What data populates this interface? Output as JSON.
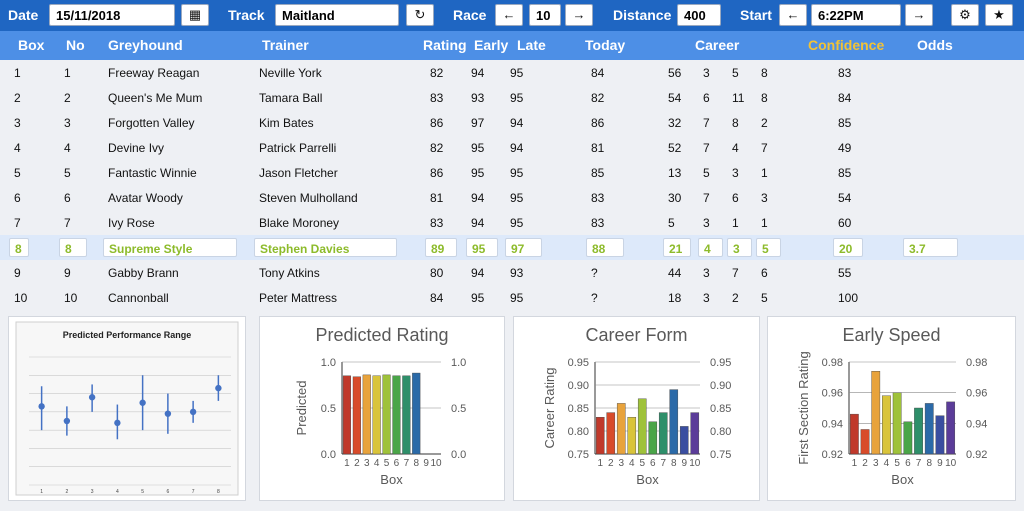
{
  "toolbar": {
    "date_label": "Date",
    "date_value": "15/11/2018",
    "calendar_icon": "calendar-icon",
    "track_label": "Track",
    "track_value": "Maitland",
    "refresh_icon": "refresh-icon",
    "race_label": "Race",
    "race_value": "10",
    "distance_label": "Distance",
    "distance_value": "400",
    "start_label": "Start",
    "start_value": "6:22PM",
    "prev_icon": "arrow-left-icon",
    "next_icon": "arrow-right-icon",
    "settings_icon": "gear-icon",
    "favorite_icon": "star-icon",
    "arrow_left_glyph": "←",
    "arrow_right_glyph": "→",
    "refresh_glyph": "↻",
    "gear_glyph": "⚙",
    "star_glyph": "★",
    "calendar_glyph": "▦"
  },
  "table": {
    "headers": {
      "box": "Box",
      "no": "No",
      "greyhound": "Greyhound",
      "trainer": "Trainer",
      "rating": "Rating",
      "early": "Early",
      "late": "Late",
      "today": "Today",
      "career": "Career",
      "confidence": "Confidence",
      "odds": "Odds"
    },
    "rows": [
      {
        "box": "1",
        "no": "1",
        "name": "Freeway Reagan",
        "trainer": "Neville York",
        "rating": "82",
        "early": "94",
        "late": "95",
        "today": "84",
        "c1": "56",
        "c2": "3",
        "c3": "5",
        "c4": "8",
        "confidence": "83",
        "odds": ""
      },
      {
        "box": "2",
        "no": "2",
        "name": "Queen's Me Mum",
        "trainer": "Tamara Ball",
        "rating": "83",
        "early": "93",
        "late": "95",
        "today": "82",
        "c1": "54",
        "c2": "6",
        "c3": "11",
        "c4": "8",
        "confidence": "84",
        "odds": ""
      },
      {
        "box": "3",
        "no": "3",
        "name": "Forgotten Valley",
        "trainer": "Kim Bates",
        "rating": "86",
        "early": "97",
        "late": "94",
        "today": "86",
        "c1": "32",
        "c2": "7",
        "c3": "8",
        "c4": "2",
        "confidence": "85",
        "odds": ""
      },
      {
        "box": "4",
        "no": "4",
        "name": "Devine Ivy",
        "trainer": "Patrick Parrelli",
        "rating": "82",
        "early": "95",
        "late": "94",
        "today": "81",
        "c1": "52",
        "c2": "7",
        "c3": "4",
        "c4": "7",
        "confidence": "49",
        "odds": ""
      },
      {
        "box": "5",
        "no": "5",
        "name": "Fantastic Winnie",
        "trainer": "Jason Fletcher",
        "rating": "86",
        "early": "95",
        "late": "95",
        "today": "85",
        "c1": "13",
        "c2": "5",
        "c3": "3",
        "c4": "1",
        "confidence": "85",
        "odds": ""
      },
      {
        "box": "6",
        "no": "6",
        "name": "Avatar Woody",
        "trainer": "Steven Mulholland",
        "rating": "81",
        "early": "94",
        "late": "95",
        "today": "83",
        "c1": "30",
        "c2": "7",
        "c3": "6",
        "c4": "3",
        "confidence": "54",
        "odds": ""
      },
      {
        "box": "7",
        "no": "7",
        "name": "Ivy Rose",
        "trainer": "Blake Moroney",
        "rating": "83",
        "early": "94",
        "late": "95",
        "today": "83",
        "c1": "5",
        "c2": "3",
        "c3": "1",
        "c4": "1",
        "confidence": "60",
        "odds": ""
      },
      {
        "box": "8",
        "no": "8",
        "name": "Supreme Style",
        "trainer": "Stephen Davies",
        "rating": "89",
        "early": "95",
        "late": "97",
        "today": "88",
        "c1": "21",
        "c2": "4",
        "c3": "3",
        "c4": "5",
        "confidence": "20",
        "odds": "3.7"
      },
      {
        "box": "9",
        "no": "9",
        "name": "Gabby Brann",
        "trainer": "Tony Atkins",
        "rating": "80",
        "early": "94",
        "late": "93",
        "today": "?",
        "c1": "44",
        "c2": "3",
        "c3": "7",
        "c4": "6",
        "confidence": "55",
        "odds": ""
      },
      {
        "box": "10",
        "no": "10",
        "name": "Cannonball",
        "trainer": "Peter Mattress",
        "rating": "84",
        "early": "95",
        "late": "95",
        "today": "?",
        "c1": "18",
        "c2": "3",
        "c3": "2",
        "c4": "5",
        "confidence": "100",
        "odds": ""
      }
    ],
    "selected_index": 7
  },
  "chart_data": [
    {
      "type": "scatter",
      "title": "Predicted Performance Range",
      "x": [
        1,
        2,
        3,
        4,
        5,
        6,
        7,
        8
      ],
      "y": [
        0.63,
        0.55,
        0.68,
        0.54,
        0.65,
        0.59,
        0.6,
        0.73
      ],
      "error_low": [
        0.5,
        0.47,
        0.6,
        0.45,
        0.5,
        0.48,
        0.54,
        0.66
      ],
      "error_high": [
        0.74,
        0.63,
        0.75,
        0.64,
        0.8,
        0.7,
        0.66,
        0.8
      ],
      "xticks": [
        "1",
        "2",
        "3",
        "4",
        "5",
        "6",
        "7",
        "8"
      ],
      "color": "#4472c4",
      "grid": true
    },
    {
      "type": "bar",
      "title": "Predicted Rating",
      "xlabel": "Box",
      "ylabel": "Predicted",
      "categories": [
        "1",
        "2",
        "3",
        "4",
        "5",
        "6",
        "7",
        "8",
        "9",
        "10"
      ],
      "values": [
        0.85,
        0.84,
        0.86,
        0.85,
        0.86,
        0.85,
        0.85,
        0.88,
        null,
        null
      ],
      "ylim": [
        0,
        1
      ],
      "yticks": [
        "0.0",
        "0.5",
        "1.0"
      ],
      "right_yticks": [
        "0.0",
        "0.5",
        "1.0"
      ]
    },
    {
      "type": "bar",
      "title": "Career Form",
      "xlabel": "Box",
      "ylabel": "Career Rating",
      "categories": [
        "1",
        "2",
        "3",
        "4",
        "5",
        "6",
        "7",
        "8",
        "9",
        "10"
      ],
      "values": [
        0.83,
        0.84,
        0.86,
        0.83,
        0.87,
        0.82,
        0.84,
        0.89,
        0.81,
        0.84
      ],
      "ylim": [
        0.75,
        0.95
      ],
      "yticks": [
        "0.75",
        "0.80",
        "0.85",
        "0.90",
        "0.95"
      ],
      "right_yticks": [
        "0.75",
        "0.80",
        "0.85",
        "0.90",
        "0.95"
      ]
    },
    {
      "type": "bar",
      "title": "Early Speed",
      "xlabel": "Box",
      "ylabel": "First Section Rating",
      "categories": [
        "1",
        "2",
        "3",
        "4",
        "5",
        "6",
        "7",
        "8",
        "9",
        "10"
      ],
      "values": [
        0.946,
        0.936,
        0.974,
        0.958,
        0.96,
        0.941,
        0.95,
        0.953,
        0.945,
        0.954
      ],
      "ylim": [
        0.92,
        0.98
      ],
      "yticks": [
        "0.92",
        "0.94",
        "0.96",
        "0.98"
      ],
      "right_yticks": [
        "0.92",
        "0.94",
        "0.96",
        "0.98"
      ]
    }
  ],
  "colors": {
    "topbar": "#1f66c2",
    "header": "#4d8fe6",
    "confidence_header": "#f2c236",
    "selected_text": "#8dbb2b",
    "selected_row": "#dde9fa",
    "bar_palette": [
      "#c0392b",
      "#d84b2a",
      "#e8a33c",
      "#d9c43a",
      "#9fc23a",
      "#4aa548",
      "#2e8f6a",
      "#2b6aa8",
      "#3a4ea0",
      "#5b3c99"
    ]
  }
}
